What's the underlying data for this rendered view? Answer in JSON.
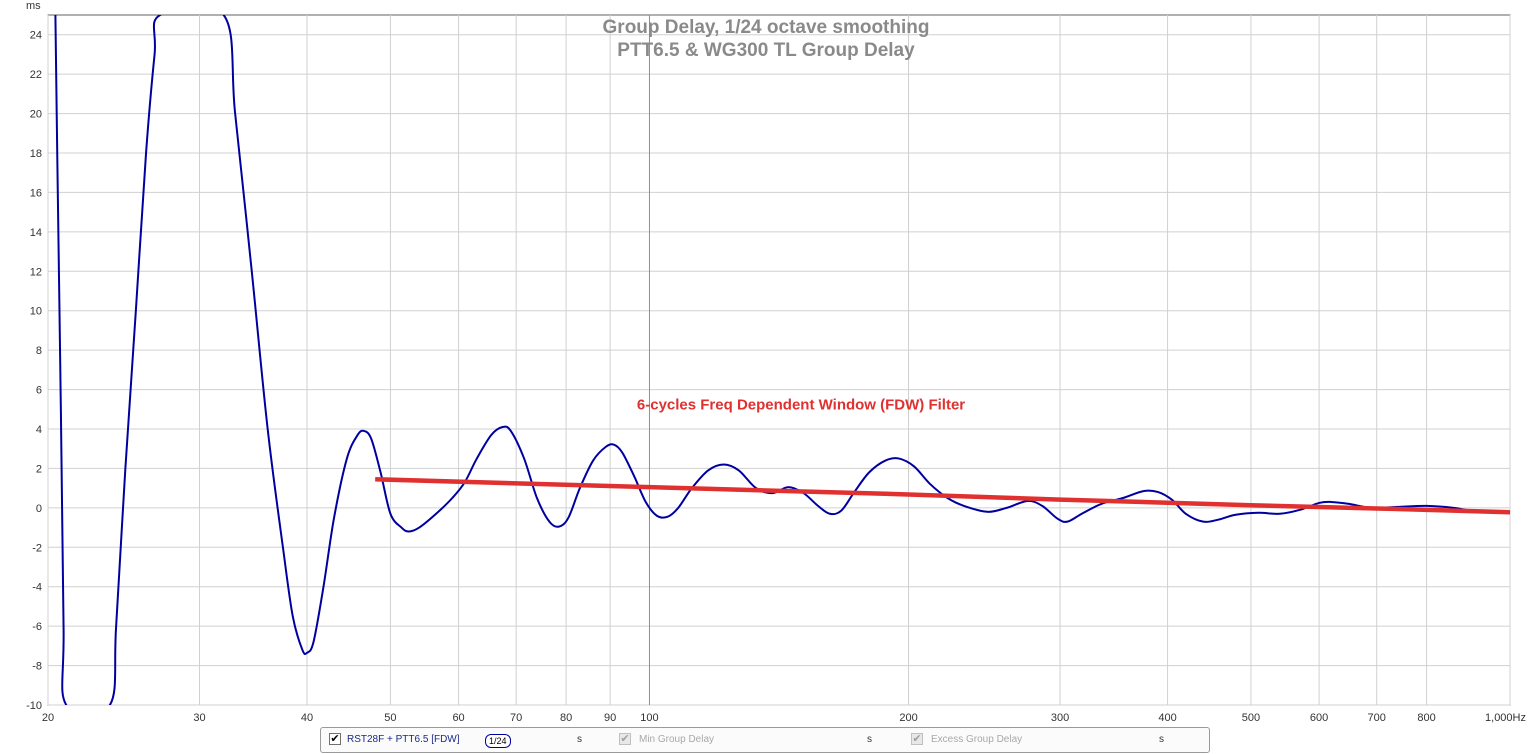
{
  "chart_data": {
    "type": "line",
    "title": "Group Delay, 1/24 octave smoothing",
    "subtitle": "PTT6.5 & WG300 TL Group Delay",
    "ylabel": "ms",
    "xlabel": "",
    "xscale": "log",
    "xlim": [
      20,
      1000
    ],
    "ylim": [
      -10,
      25
    ],
    "grid": true,
    "y_ticks": [
      24,
      22,
      20,
      18,
      16,
      14,
      12,
      10,
      8,
      6,
      4,
      2,
      0,
      -2,
      -4,
      -6,
      -8,
      -10
    ],
    "x_ticks": [
      {
        "value": 20,
        "label": "20"
      },
      {
        "value": 30,
        "label": "30"
      },
      {
        "value": 40,
        "label": "40"
      },
      {
        "value": 50,
        "label": "50"
      },
      {
        "value": 60,
        "label": "60"
      },
      {
        "value": 70,
        "label": "70"
      },
      {
        "value": 80,
        "label": "80"
      },
      {
        "value": 90,
        "label": "90"
      },
      {
        "value": 100,
        "label": "100"
      },
      {
        "value": 200,
        "label": "200"
      },
      {
        "value": 300,
        "label": "300"
      },
      {
        "value": 400,
        "label": "400"
      },
      {
        "value": 500,
        "label": "500"
      },
      {
        "value": 600,
        "label": "600"
      },
      {
        "value": 700,
        "label": "700"
      },
      {
        "value": 800,
        "label": "800"
      },
      {
        "value": 1000,
        "label": "1,000Hz"
      }
    ],
    "series": [
      {
        "name": "RST28F + PTT6.5 [FDW]",
        "color": "#0000a0",
        "points": [
          [
            20.4,
            25
          ],
          [
            20.5,
            18
          ],
          [
            20.7,
            5
          ],
          [
            20.85,
            -6
          ],
          [
            21.0,
            -10
          ],
          [
            23.6,
            -10
          ],
          [
            24.0,
            -6
          ],
          [
            24.6,
            2
          ],
          [
            25.3,
            10
          ],
          [
            26.0,
            18
          ],
          [
            26.6,
            23
          ],
          [
            27.0,
            25
          ],
          [
            32.0,
            25
          ],
          [
            33.0,
            20
          ],
          [
            34.5,
            12
          ],
          [
            36.0,
            4
          ],
          [
            37.5,
            -2
          ],
          [
            38.5,
            -5.5
          ],
          [
            39.5,
            -7.2
          ],
          [
            40.0,
            -7.35
          ],
          [
            40.7,
            -6.8
          ],
          [
            41.8,
            -4
          ],
          [
            43.0,
            -0.5
          ],
          [
            44.5,
            2.5
          ],
          [
            45.8,
            3.7
          ],
          [
            46.6,
            3.9
          ],
          [
            47.5,
            3.5
          ],
          [
            48.7,
            1.8
          ],
          [
            50.0,
            -0.3
          ],
          [
            51.5,
            -1.0
          ],
          [
            52.5,
            -1.2
          ],
          [
            54.0,
            -1.0
          ],
          [
            56.5,
            -0.3
          ],
          [
            59.0,
            0.5
          ],
          [
            61.0,
            1.3
          ],
          [
            63.0,
            2.5
          ],
          [
            65.5,
            3.7
          ],
          [
            67.5,
            4.1
          ],
          [
            69.0,
            3.9
          ],
          [
            71.5,
            2.5
          ],
          [
            74.0,
            0.5
          ],
          [
            76.5,
            -0.7
          ],
          [
            78.5,
            -0.95
          ],
          [
            80.5,
            -0.5
          ],
          [
            83.0,
            1.0
          ],
          [
            86.0,
            2.4
          ],
          [
            89.0,
            3.1
          ],
          [
            91.0,
            3.2
          ],
          [
            93.0,
            2.8
          ],
          [
            96.0,
            1.6
          ],
          [
            99.0,
            0.3
          ],
          [
            102.0,
            -0.4
          ],
          [
            105.0,
            -0.45
          ],
          [
            108.0,
            0.0
          ],
          [
            112.0,
            1.0
          ],
          [
            117.0,
            1.9
          ],
          [
            122.0,
            2.2
          ],
          [
            127.0,
            1.9
          ],
          [
            133.0,
            1.0
          ],
          [
            139.0,
            0.75
          ],
          [
            145.0,
            1.05
          ],
          [
            151.0,
            0.75
          ],
          [
            157.0,
            0.1
          ],
          [
            162.0,
            -0.3
          ],
          [
            167.0,
            -0.15
          ],
          [
            173.0,
            0.8
          ],
          [
            180.0,
            1.8
          ],
          [
            188.0,
            2.4
          ],
          [
            195.0,
            2.5
          ],
          [
            203.0,
            2.1
          ],
          [
            212.0,
            1.2
          ],
          [
            222.0,
            0.5
          ],
          [
            232.0,
            0.1
          ],
          [
            247.0,
            -0.2
          ],
          [
            260.0,
            0.0
          ],
          [
            275.0,
            0.35
          ],
          [
            286.0,
            0.1
          ],
          [
            298.0,
            -0.55
          ],
          [
            306.0,
            -0.7
          ],
          [
            318.0,
            -0.3
          ],
          [
            335.0,
            0.2
          ],
          [
            355.0,
            0.5
          ],
          [
            375.0,
            0.85
          ],
          [
            390.0,
            0.8
          ],
          [
            405.0,
            0.4
          ],
          [
            420.0,
            -0.3
          ],
          [
            440.0,
            -0.7
          ],
          [
            458.0,
            -0.6
          ],
          [
            480.0,
            -0.35
          ],
          [
            510.0,
            -0.25
          ],
          [
            540.0,
            -0.3
          ],
          [
            570.0,
            -0.1
          ],
          [
            600.0,
            0.25
          ],
          [
            620.0,
            0.3
          ],
          [
            650.0,
            0.2
          ],
          [
            690.0,
            0.0
          ],
          [
            740.0,
            0.05
          ],
          [
            800.0,
            0.1
          ],
          [
            860.0,
            0.0
          ],
          [
            920.0,
            -0.2
          ],
          [
            1000.0,
            -0.25
          ]
        ]
      },
      {
        "name": "6-cycles Freq Dependent Window (FDW) Filter",
        "color": "#e03030",
        "points": [
          [
            48,
            1.45
          ],
          [
            100,
            1.05
          ],
          [
            200,
            0.68
          ],
          [
            300,
            0.42
          ],
          [
            400,
            0.26
          ],
          [
            500,
            0.13
          ],
          [
            700,
            -0.03
          ],
          [
            1000,
            -0.22
          ]
        ]
      }
    ],
    "annotations": [
      {
        "text": "6-cycles Freq Dependent Window (FDW) Filter",
        "x": 150,
        "y": 5,
        "color": "#e03030"
      }
    ]
  },
  "legend": {
    "trace_label": "RST28F + PTT6.5 [FDW]",
    "smoothing": "1/24",
    "unit1": "s",
    "min_gd_label": "Min Group Delay",
    "unit2": "s",
    "excess_gd_label": "Excess Group Delay",
    "unit3": "s"
  }
}
